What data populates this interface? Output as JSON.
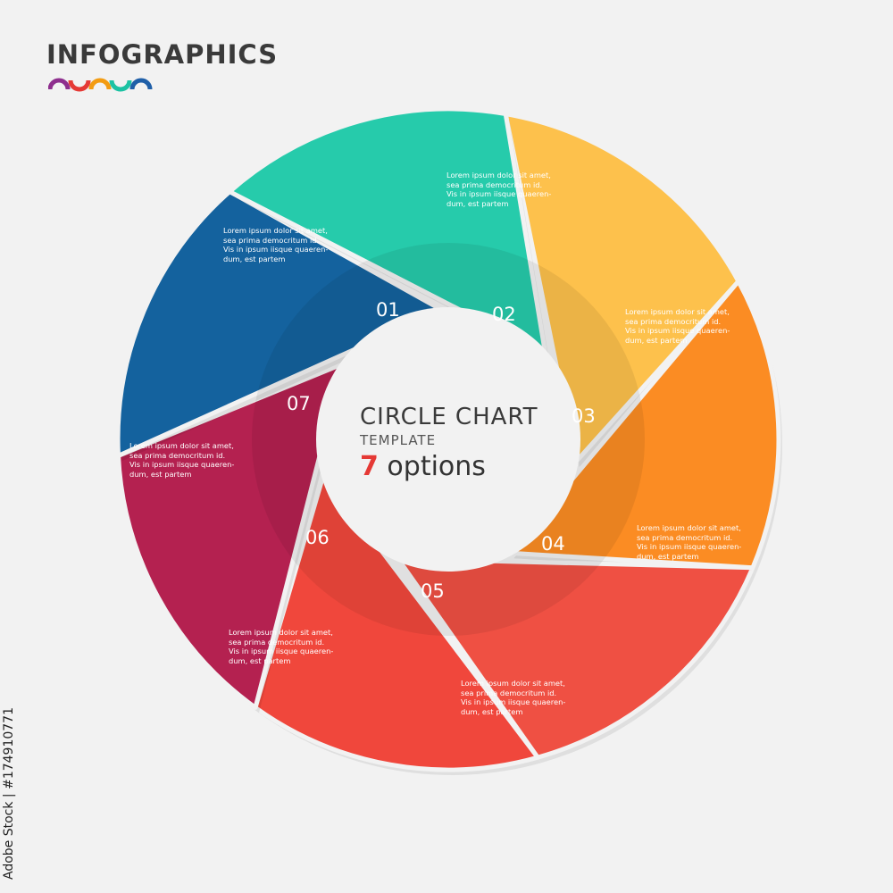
{
  "header": {
    "title": "INFOGRAPHICS"
  },
  "center": {
    "title": "CIRCLE CHART",
    "subtitle": "TEMPLATE",
    "count": "7",
    "count_label": "options"
  },
  "colors": {
    "background": "#f2f2f2",
    "logo_arcs": [
      "#8e2f8e",
      "#e53935",
      "#f39c12",
      "#1cc2a3",
      "#1f5fa8"
    ]
  },
  "segments": [
    {
      "number": "01",
      "color": "#fdc14c",
      "text_lines": [
        "Lorem ipsum dolor sit amet,",
        "sea  prima  democritum  id.",
        "Vis in ipsum iisque quaeren-",
        "dum, est partem"
      ]
    },
    {
      "number": "02",
      "color": "#fb8c23",
      "text_lines": [
        "Lorem ipsum dolor sit amet,",
        "sea  prima  democritum  id.",
        "Vis in ipsum iisque quaeren-",
        "dum, est partem"
      ]
    },
    {
      "number": "03",
      "color": "#ef5043",
      "text_lines": [
        "Lorem ipsum dolor sit amet,",
        "sea  prima  democritum  id.",
        "Vis in ipsum iisque quaeren-",
        "dum, est partem"
      ]
    },
    {
      "number": "04",
      "color": "#f0473c",
      "text_lines": [
        "Lorem ipsum dolor sit amet,",
        "sea  prima  democritum  id.",
        "Vis in ipsum iisque quaeren-",
        "dum, est partem"
      ]
    },
    {
      "number": "05",
      "color": "#b42150",
      "text_lines": [
        "Lorem ipsum dolor sit amet,",
        "sea  prima  democritum  id.",
        "Vis in ipsum iisque quaeren-",
        "dum, est partem"
      ]
    },
    {
      "number": "06",
      "color": "#14629e",
      "text_lines": [
        "Lorem ipsum dolor sit amet,",
        "sea  prima  democritum  id.",
        "Vis in ipsum iisque quaeren-",
        "dum, est partem"
      ]
    },
    {
      "number": "07",
      "color": "#26cbab",
      "text_lines": [
        "Lorem ipsum dolor sit amet,",
        "sea  prima  democritum  id.",
        "Vis in ipsum iisque quaeren-",
        "dum, est partem"
      ]
    }
  ],
  "side_text": "Adobe Stock | #174910771"
}
